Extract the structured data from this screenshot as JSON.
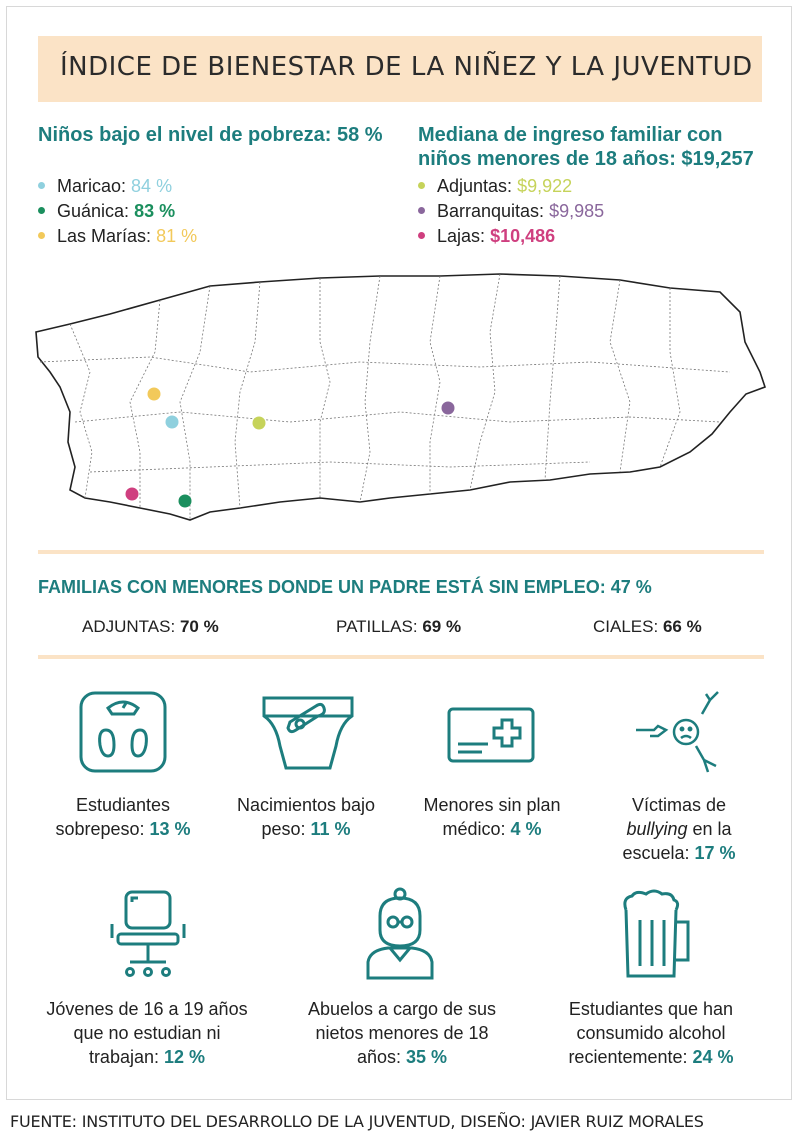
{
  "title": "ÍNDICE DE BIENESTAR DE LA NIÑEZ Y LA JUVENTUD",
  "colors": {
    "teal": "#1d7d7e",
    "maricao": "#8fd0de",
    "guanica": "#1b8f5e",
    "las_marias": "#f2c95a",
    "adjuntas": "#c6d35a",
    "barranquitas": "#8a679c",
    "lajas": "#cf3f7f",
    "peach": "#fbe3c6"
  },
  "poverty": {
    "heading": "Niños bajo el nivel de pobreza: 58 %",
    "items": [
      {
        "name": "Maricao:",
        "value": "84 %"
      },
      {
        "name": "Guánica:",
        "value": "83 %"
      },
      {
        "name": "Las Marías:",
        "value": "81 %"
      }
    ]
  },
  "income": {
    "heading_line1": "Mediana de ingreso familiar con",
    "heading_line2": "niños menores de 18 años: $19,257",
    "items": [
      {
        "name": "Adjuntas:",
        "value": "$9,922"
      },
      {
        "name": "Barranquitas:",
        "value": "$9,985"
      },
      {
        "name": "Lajas:",
        "value": "$10,486"
      }
    ]
  },
  "unemployment": {
    "heading": "FAMILIAS CON MENORES DONDE UN PADRE ESTÁ SIN EMPLEO: 47 %",
    "items": [
      {
        "name": "ADJUNTAS:",
        "value": "70 %"
      },
      {
        "name": "PATILLAS:",
        "value": "69 %"
      },
      {
        "name": "CIALES:",
        "value": "66 %"
      }
    ]
  },
  "indicators": [
    {
      "icon": "scale-icon",
      "text": "Estudiantes sobrepeso:",
      "value": "13 %"
    },
    {
      "icon": "diaper-icon",
      "text": "Nacimientos bajo peso:",
      "value": "11 %"
    },
    {
      "icon": "health-card-icon",
      "text": "Menores sin plan médico:",
      "value": "4 %"
    },
    {
      "icon": "bullying-icon",
      "text_a": "Víctimas de",
      "text_b": "bullying",
      "text_c": "en la escuela:",
      "value": "17 %"
    },
    {
      "icon": "chair-icon",
      "text": "Jóvenes de 16 a 19 años que no estudian ni trabajan:",
      "value": "12 %"
    },
    {
      "icon": "grandmother-icon",
      "text": "Abuelos a cargo de sus nietos menores de 18 años:",
      "value": "35 %"
    },
    {
      "icon": "beer-mug-icon",
      "text": "Estudiantes que han consumido alcohol recientemente:",
      "value": "24 %"
    }
  ],
  "footer": "FUENTE: INSTITUTO DEL DESARROLLO DE LA JUVENTUD, DISEÑO: JAVIER RUIZ MORALES"
}
